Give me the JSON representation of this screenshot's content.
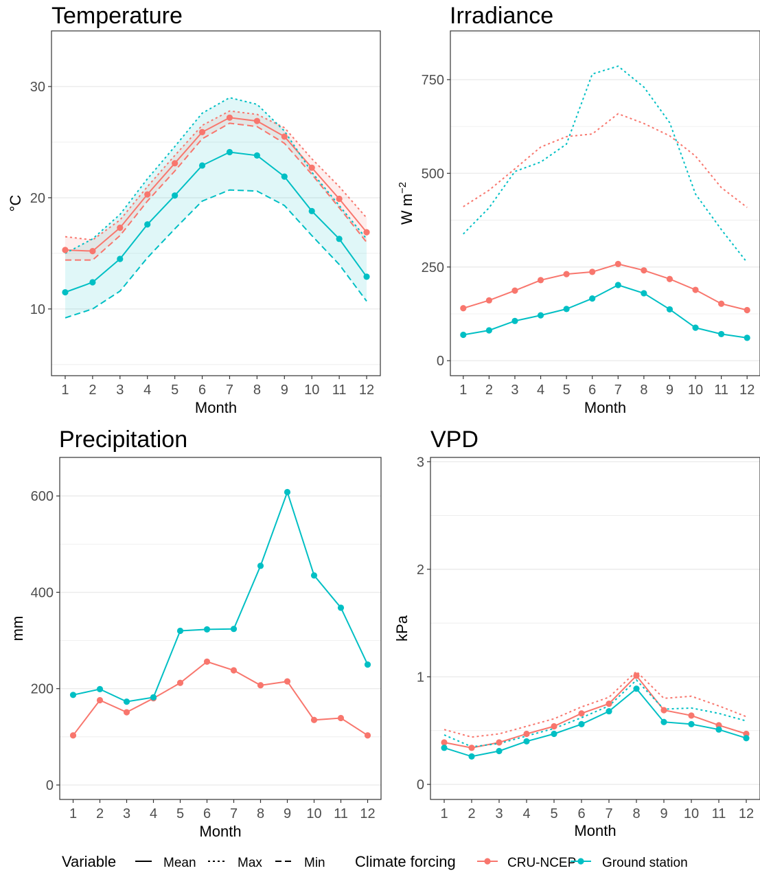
{
  "colors": {
    "cru": "#F8766D",
    "ground": "#00BFC4",
    "grid": "#ebebeb",
    "border": "#333333"
  },
  "legend": {
    "variable_title": "Variable",
    "variable_items": [
      {
        "label": "Mean",
        "dash": "solid"
      },
      {
        "label": "Max",
        "dash": "dotted"
      },
      {
        "label": "Min",
        "dash": "dashed"
      }
    ],
    "forcing_title": "Climate forcing",
    "forcing_items": [
      {
        "label": "CRU-NCEP",
        "color": "#F8766D"
      },
      {
        "label": "Ground station",
        "color": "#00BFC4"
      }
    ]
  },
  "chart_data": [
    {
      "type": "line",
      "title": "Temperature",
      "xlabel": "Month",
      "ylabel": "°C",
      "x": [
        1,
        2,
        3,
        4,
        5,
        6,
        7,
        8,
        9,
        10,
        11,
        12
      ],
      "xlim": [
        0.5,
        12.5
      ],
      "ylim": [
        4,
        35
      ],
      "yticks": [
        10,
        20,
        30
      ],
      "band": true,
      "series": [
        {
          "source": "CRU-NCEP",
          "variable": "Mean",
          "color": "#F8766D",
          "points": true,
          "values": [
            15.3,
            15.2,
            17.3,
            20.3,
            23.1,
            25.9,
            27.2,
            26.9,
            25.5,
            22.7,
            19.9,
            16.9
          ]
        },
        {
          "source": "CRU-NCEP",
          "variable": "Max",
          "color": "#F8766D",
          "values": [
            16.5,
            16.2,
            18.0,
            21.0,
            23.8,
            26.5,
            27.8,
            27.5,
            26.3,
            23.5,
            21.0,
            18.2
          ]
        },
        {
          "source": "CRU-NCEP",
          "variable": "Min",
          "color": "#F8766D",
          "values": [
            14.4,
            14.4,
            16.6,
            19.7,
            22.4,
            25.3,
            26.7,
            26.4,
            24.9,
            22.1,
            19.1,
            16.0
          ]
        },
        {
          "source": "Ground station",
          "variable": "Mean",
          "color": "#00BFC4",
          "points": true,
          "values": [
            11.5,
            12.4,
            14.5,
            17.6,
            20.2,
            22.9,
            24.1,
            23.8,
            21.9,
            18.8,
            16.3,
            12.9
          ]
        },
        {
          "source": "Ground station",
          "variable": "Max",
          "color": "#00BFC4",
          "values": [
            15.0,
            16.3,
            18.5,
            21.7,
            24.6,
            27.6,
            29.0,
            28.4,
            26.0,
            22.3,
            19.3,
            16.3
          ]
        },
        {
          "source": "Ground station",
          "variable": "Min",
          "color": "#00BFC4",
          "values": [
            9.2,
            10.0,
            11.6,
            14.6,
            17.2,
            19.7,
            20.7,
            20.6,
            19.3,
            16.6,
            14.0,
            10.7
          ]
        }
      ]
    },
    {
      "type": "line",
      "title": "Irradiance",
      "xlabel": "Month",
      "ylabel_main": "W m",
      "ylabel_sup": "−2",
      "x": [
        1,
        2,
        3,
        4,
        5,
        6,
        7,
        8,
        9,
        10,
        11,
        12
      ],
      "xlim": [
        0.5,
        12.5
      ],
      "ylim": [
        -40,
        880
      ],
      "yticks": [
        0,
        250,
        500,
        750
      ],
      "series": [
        {
          "source": "CRU-NCEP",
          "variable": "Mean",
          "color": "#F8766D",
          "points": true,
          "values": [
            140,
            161,
            187,
            215,
            231,
            237,
            258,
            241,
            218,
            189,
            152,
            135
          ]
        },
        {
          "source": "CRU-NCEP",
          "variable": "Max",
          "color": "#F8766D",
          "values": [
            411,
            455,
            512,
            570,
            598,
            605,
            659,
            633,
            600,
            546,
            462,
            409
          ]
        },
        {
          "source": "Ground station",
          "variable": "Mean",
          "color": "#00BFC4",
          "points": true,
          "values": [
            69,
            81,
            106,
            121,
            138,
            166,
            202,
            180,
            137,
            88,
            71,
            61
          ]
        },
        {
          "source": "Ground station",
          "variable": "Max",
          "color": "#00BFC4",
          "values": [
            338,
            408,
            505,
            530,
            578,
            765,
            786,
            730,
            635,
            445,
            350,
            262
          ]
        }
      ]
    },
    {
      "type": "line",
      "title": "Precipitation",
      "xlabel": "Month",
      "ylabel": "mm",
      "x": [
        1,
        2,
        3,
        4,
        5,
        6,
        7,
        8,
        9,
        10,
        11,
        12
      ],
      "xlim": [
        0.5,
        12.5
      ],
      "ylim": [
        -30,
        680
      ],
      "yticks": [
        0,
        200,
        400,
        600
      ],
      "series": [
        {
          "source": "CRU-NCEP",
          "variable": "Mean",
          "color": "#F8766D",
          "points": true,
          "values": [
            103,
            176,
            151,
            180,
            212,
            256,
            238,
            207,
            215,
            135,
            139,
            103
          ]
        },
        {
          "source": "Ground station",
          "variable": "Mean",
          "color": "#00BFC4",
          "points": true,
          "values": [
            187,
            199,
            173,
            182,
            320,
            323,
            324,
            455,
            608,
            435,
            368,
            250
          ]
        }
      ]
    },
    {
      "type": "line",
      "title": "VPD",
      "xlabel": "Month",
      "ylabel": "kPa",
      "x": [
        1,
        2,
        3,
        4,
        5,
        6,
        7,
        8,
        9,
        10,
        11,
        12
      ],
      "xlim": [
        0.5,
        12.5
      ],
      "ylim": [
        -0.14,
        3.04
      ],
      "yticks": [
        0,
        1,
        2,
        3
      ],
      "series": [
        {
          "source": "CRU-NCEP",
          "variable": "Mean",
          "color": "#F8766D",
          "points": true,
          "values": [
            0.39,
            0.34,
            0.39,
            0.47,
            0.54,
            0.66,
            0.75,
            1.01,
            0.69,
            0.64,
            0.55,
            0.47
          ]
        },
        {
          "source": "CRU-NCEP",
          "variable": "Max",
          "color": "#F8766D",
          "values": [
            0.51,
            0.44,
            0.47,
            0.54,
            0.61,
            0.72,
            0.81,
            1.05,
            0.8,
            0.82,
            0.73,
            0.63
          ]
        },
        {
          "source": "Ground station",
          "variable": "Mean",
          "color": "#00BFC4",
          "points": true,
          "values": [
            0.34,
            0.26,
            0.31,
            0.4,
            0.47,
            0.56,
            0.68,
            0.89,
            0.58,
            0.56,
            0.51,
            0.43
          ]
        },
        {
          "source": "Ground station",
          "variable": "Max",
          "color": "#00BFC4",
          "values": [
            0.46,
            0.35,
            0.38,
            0.45,
            0.52,
            0.62,
            0.73,
            0.97,
            0.7,
            0.71,
            0.66,
            0.59
          ]
        }
      ]
    }
  ]
}
